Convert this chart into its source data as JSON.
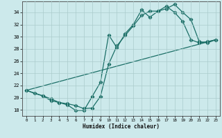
{
  "title": "",
  "xlabel": "Humidex (Indice chaleur)",
  "bg_color": "#cce9eb",
  "line_color": "#1a6e66",
  "xlim": [
    -0.5,
    23.5
  ],
  "ylim": [
    17.0,
    35.8
  ],
  "yticks": [
    18,
    20,
    22,
    24,
    26,
    28,
    30,
    32,
    34
  ],
  "xticks": [
    0,
    1,
    2,
    3,
    4,
    5,
    6,
    7,
    8,
    9,
    10,
    11,
    12,
    13,
    14,
    15,
    16,
    17,
    18,
    19,
    20,
    21,
    22,
    23
  ],
  "line1_x": [
    0,
    1,
    2,
    3,
    4,
    5,
    6,
    7,
    8,
    9,
    10,
    11,
    12,
    13,
    14,
    15,
    16,
    17,
    18,
    19,
    20,
    21,
    22,
    23
  ],
  "line1_y": [
    21.2,
    20.7,
    20.3,
    19.5,
    19.2,
    18.8,
    17.9,
    17.9,
    20.2,
    22.5,
    30.3,
    28.2,
    30.5,
    32.0,
    34.4,
    33.2,
    34.2,
    34.6,
    35.3,
    34.0,
    32.8,
    29.2,
    29.0,
    29.5
  ],
  "line2_x": [
    0,
    2,
    3,
    4,
    5,
    6,
    7,
    8,
    9,
    10,
    11,
    12,
    13,
    14,
    15,
    16,
    17,
    18,
    19,
    20,
    21,
    22,
    23
  ],
  "line2_y": [
    21.2,
    20.3,
    19.8,
    19.2,
    19.0,
    18.7,
    18.2,
    18.3,
    20.2,
    25.5,
    28.5,
    30.2,
    31.8,
    33.5,
    34.2,
    34.2,
    35.0,
    34.0,
    32.5,
    29.5,
    29.0,
    29.2,
    29.5
  ],
  "line3_x": [
    0,
    23
  ],
  "line3_y": [
    21.2,
    29.5
  ],
  "grid_color": "#aacccc",
  "grid_lw": 0.5,
  "line_lw": 0.9,
  "marker_size": 2.3
}
